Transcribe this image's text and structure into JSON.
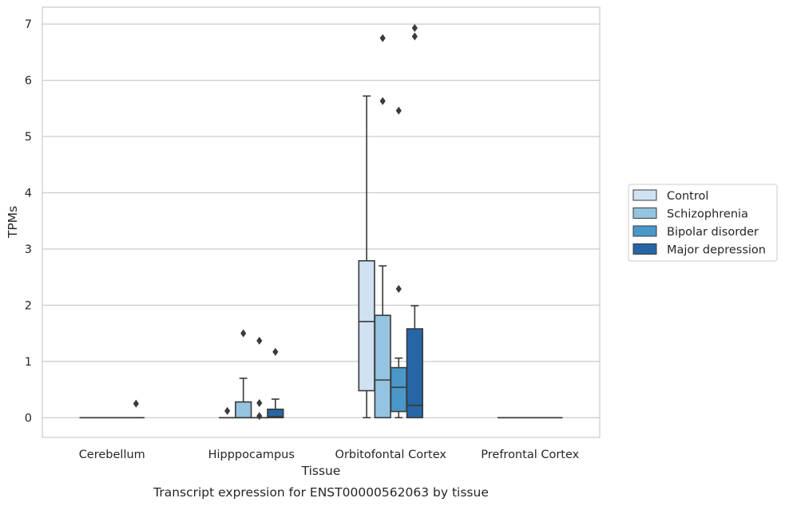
{
  "caption": "Transcript expression for ENST00000562063 by tissue",
  "colors": {
    "Control": "#d0e1f2",
    "Schizophrenia": "#94c4df",
    "Bipolar disorder": "#4a98c9",
    "Major depression": "#2666a5",
    "outline": "#3a3a3a",
    "grid": "#cccccc"
  },
  "chart_data": {
    "type": "box",
    "title": "",
    "xlabel": "Tissue",
    "ylabel": "TPMs",
    "ylim": [
      -0.35,
      7.3
    ],
    "yticks": [
      0,
      1,
      2,
      3,
      4,
      5,
      6,
      7
    ],
    "grid": "horizontal",
    "legend_position": "right",
    "categories": [
      "Cerebellum",
      "Hipppocampus",
      "Orbitofontal Cortex",
      "Prefrontal Cortex"
    ],
    "hue_order": [
      "Control",
      "Schizophrenia",
      "Bipolar disorder",
      "Major depression"
    ],
    "boxes": [
      {
        "category": "Cerebellum",
        "group": "Control",
        "q1": 0,
        "median": 0,
        "q3": 0,
        "whisker_low": 0,
        "whisker_high": 0,
        "outliers": []
      },
      {
        "category": "Cerebellum",
        "group": "Schizophrenia",
        "q1": 0,
        "median": 0,
        "q3": 0,
        "whisker_low": 0,
        "whisker_high": 0,
        "outliers": []
      },
      {
        "category": "Cerebellum",
        "group": "Bipolar disorder",
        "q1": 0,
        "median": 0,
        "q3": 0,
        "whisker_low": 0,
        "whisker_high": 0,
        "outliers": []
      },
      {
        "category": "Cerebellum",
        "group": "Major depression",
        "q1": 0,
        "median": 0,
        "q3": 0,
        "whisker_low": 0,
        "whisker_high": 0,
        "outliers": [
          0.25
        ]
      },
      {
        "category": "Hipppocampus",
        "group": "Control",
        "q1": 0,
        "median": 0,
        "q3": 0,
        "whisker_low": 0,
        "whisker_high": 0,
        "outliers": [
          0.12
        ]
      },
      {
        "category": "Hipppocampus",
        "group": "Schizophrenia",
        "q1": 0,
        "median": 0,
        "q3": 0.28,
        "whisker_low": 0,
        "whisker_high": 0.7,
        "outliers": [
          1.5
        ]
      },
      {
        "category": "Hipppocampus",
        "group": "Bipolar disorder",
        "q1": 0,
        "median": 0,
        "q3": 0,
        "whisker_low": 0,
        "whisker_high": 0,
        "outliers": [
          0.03,
          0.26,
          1.37
        ]
      },
      {
        "category": "Hipppocampus",
        "group": "Major depression",
        "q1": 0,
        "median": 0.02,
        "q3": 0.15,
        "whisker_low": 0,
        "whisker_high": 0.33,
        "outliers": [
          1.17
        ]
      },
      {
        "category": "Orbitofontal Cortex",
        "group": "Control",
        "q1": 0.48,
        "median": 1.71,
        "q3": 2.79,
        "whisker_low": 0,
        "whisker_high": 5.72,
        "outliers": []
      },
      {
        "category": "Orbitofontal Cortex",
        "group": "Schizophrenia",
        "q1": 0,
        "median": 0.67,
        "q3": 1.82,
        "whisker_low": 0,
        "whisker_high": 2.7,
        "outliers": [
          5.63,
          6.75
        ]
      },
      {
        "category": "Orbitofontal Cortex",
        "group": "Bipolar disorder",
        "q1": 0.11,
        "median": 0.54,
        "q3": 0.89,
        "whisker_low": 0,
        "whisker_high": 1.06,
        "outliers": [
          2.29,
          5.46
        ]
      },
      {
        "category": "Orbitofontal Cortex",
        "group": "Major depression",
        "q1": 0,
        "median": 0.22,
        "q3": 1.58,
        "whisker_low": 0,
        "whisker_high": 1.99,
        "outliers": [
          6.78,
          6.93
        ]
      },
      {
        "category": "Prefrontal Cortex",
        "group": "Control",
        "q1": 0,
        "median": 0,
        "q3": 0,
        "whisker_low": 0,
        "whisker_high": 0,
        "outliers": []
      },
      {
        "category": "Prefrontal Cortex",
        "group": "Schizophrenia",
        "q1": 0,
        "median": 0,
        "q3": 0,
        "whisker_low": 0,
        "whisker_high": 0,
        "outliers": []
      },
      {
        "category": "Prefrontal Cortex",
        "group": "Bipolar disorder",
        "q1": 0,
        "median": 0,
        "q3": 0,
        "whisker_low": 0,
        "whisker_high": 0,
        "outliers": []
      },
      {
        "category": "Prefrontal Cortex",
        "group": "Major depression",
        "q1": 0,
        "median": 0,
        "q3": 0,
        "whisker_low": 0,
        "whisker_high": 0,
        "outliers": []
      }
    ]
  }
}
